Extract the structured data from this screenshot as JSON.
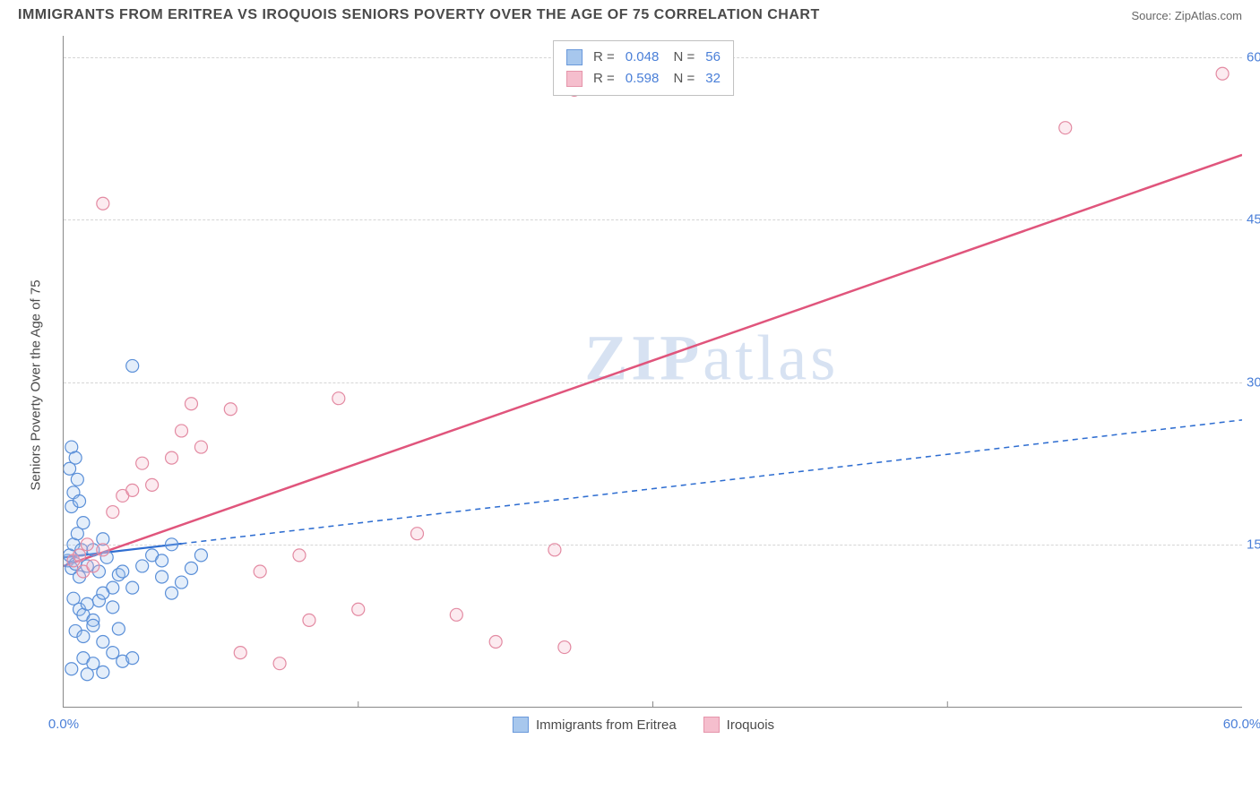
{
  "header": {
    "title": "IMMIGRANTS FROM ERITREA VS IROQUOIS SENIORS POVERTY OVER THE AGE OF 75 CORRELATION CHART",
    "source": "Source: ZipAtlas.com"
  },
  "watermark": {
    "left": "ZIP",
    "right": "atlas"
  },
  "chart": {
    "type": "scatter",
    "yaxis_title": "Seniors Poverty Over the Age of 75",
    "xlim": [
      0,
      60
    ],
    "ylim": [
      0,
      62
    ],
    "xticks": [
      {
        "v": 0,
        "label": "0.0%"
      },
      {
        "v": 60,
        "label": "60.0%"
      }
    ],
    "xticks_minor": [
      15,
      30,
      45
    ],
    "yticks": [
      {
        "v": 15,
        "label": "15.0%"
      },
      {
        "v": 30,
        "label": "30.0%"
      },
      {
        "v": 45,
        "label": "45.0%"
      },
      {
        "v": 60,
        "label": "60.0%"
      }
    ],
    "grid_color": "#d5d5d5",
    "background_color": "#ffffff",
    "marker_radius": 7,
    "marker_stroke_width": 1.2,
    "marker_fill_opacity": 0.28,
    "series": [
      {
        "name": "Immigrants from Eritrea",
        "color_stroke": "#5a8fd8",
        "color_fill": "#9ec1ec",
        "R": "0.048",
        "N": "56",
        "trend": {
          "x1": 0,
          "y1": 13.8,
          "x2": 60,
          "y2": 26.5,
          "solid_until_x": 6,
          "line_color": "#2f6ed1",
          "line_width": 2.2
        },
        "points": [
          [
            0.2,
            13.5
          ],
          [
            0.3,
            14.0
          ],
          [
            0.4,
            12.8
          ],
          [
            0.5,
            15.0
          ],
          [
            0.6,
            13.2
          ],
          [
            0.7,
            16.0
          ],
          [
            0.8,
            12.0
          ],
          [
            0.9,
            14.5
          ],
          [
            1.0,
            17.0
          ],
          [
            0.3,
            22.0
          ],
          [
            0.4,
            24.0
          ],
          [
            0.6,
            23.0
          ],
          [
            0.4,
            18.5
          ],
          [
            0.5,
            19.8
          ],
          [
            0.7,
            21.0
          ],
          [
            0.8,
            19.0
          ],
          [
            1.2,
            13.0
          ],
          [
            1.5,
            14.5
          ],
          [
            1.8,
            12.5
          ],
          [
            2.0,
            15.5
          ],
          [
            2.2,
            13.8
          ],
          [
            2.5,
            11.0
          ],
          [
            2.8,
            12.2
          ],
          [
            0.5,
            10.0
          ],
          [
            0.8,
            9.0
          ],
          [
            1.0,
            8.5
          ],
          [
            1.2,
            9.5
          ],
          [
            1.5,
            8.0
          ],
          [
            1.8,
            9.8
          ],
          [
            2.0,
            10.5
          ],
          [
            2.5,
            9.2
          ],
          [
            0.6,
            7.0
          ],
          [
            1.0,
            6.5
          ],
          [
            1.5,
            7.5
          ],
          [
            2.0,
            6.0
          ],
          [
            2.8,
            7.2
          ],
          [
            1.0,
            4.5
          ],
          [
            1.5,
            4.0
          ],
          [
            2.5,
            5.0
          ],
          [
            3.0,
            4.2
          ],
          [
            0.4,
            3.5
          ],
          [
            1.2,
            3.0
          ],
          [
            2.0,
            3.2
          ],
          [
            3.5,
            4.5
          ],
          [
            3.0,
            12.5
          ],
          [
            3.5,
            11.0
          ],
          [
            4.0,
            13.0
          ],
          [
            5.0,
            12.0
          ],
          [
            5.5,
            10.5
          ],
          [
            6.0,
            11.5
          ],
          [
            3.5,
            31.5
          ],
          [
            4.5,
            14.0
          ],
          [
            5.0,
            13.5
          ],
          [
            5.5,
            15.0
          ],
          [
            6.5,
            12.8
          ],
          [
            7.0,
            14.0
          ]
        ]
      },
      {
        "name": "Iroquois",
        "color_stroke": "#e38aa2",
        "color_fill": "#f5b8c8",
        "R": "0.598",
        "N": "32",
        "trend": {
          "x1": 0,
          "y1": 13.0,
          "x2": 60,
          "y2": 51.0,
          "solid_until_x": 60,
          "line_color": "#e0557c",
          "line_width": 2.5
        },
        "points": [
          [
            0.5,
            13.5
          ],
          [
            0.8,
            14.0
          ],
          [
            1.0,
            12.5
          ],
          [
            1.2,
            15.0
          ],
          [
            1.5,
            13.0
          ],
          [
            2.0,
            14.5
          ],
          [
            2.5,
            18.0
          ],
          [
            3.0,
            19.5
          ],
          [
            3.5,
            20.0
          ],
          [
            4.0,
            22.5
          ],
          [
            4.5,
            20.5
          ],
          [
            5.5,
            23.0
          ],
          [
            6.0,
            25.5
          ],
          [
            7.0,
            24.0
          ],
          [
            8.5,
            27.5
          ],
          [
            2.0,
            46.5
          ],
          [
            6.5,
            28.0
          ],
          [
            10.0,
            12.5
          ],
          [
            12.0,
            14.0
          ],
          [
            14.0,
            28.5
          ],
          [
            18.0,
            16.0
          ],
          [
            20.0,
            8.5
          ],
          [
            22.0,
            6.0
          ],
          [
            9.0,
            5.0
          ],
          [
            11.0,
            4.0
          ],
          [
            12.5,
            8.0
          ],
          [
            15.0,
            9.0
          ],
          [
            25.0,
            14.5
          ],
          [
            25.5,
            5.5
          ],
          [
            26.0,
            57.0
          ],
          [
            51.0,
            53.5
          ],
          [
            59.0,
            58.5
          ]
        ]
      }
    ],
    "legend_bottom": [
      {
        "label": "Immigrants from Eritrea",
        "stroke": "#5a8fd8",
        "fill": "#9ec1ec"
      },
      {
        "label": "Iroquois",
        "stroke": "#e38aa2",
        "fill": "#f5b8c8"
      }
    ]
  }
}
